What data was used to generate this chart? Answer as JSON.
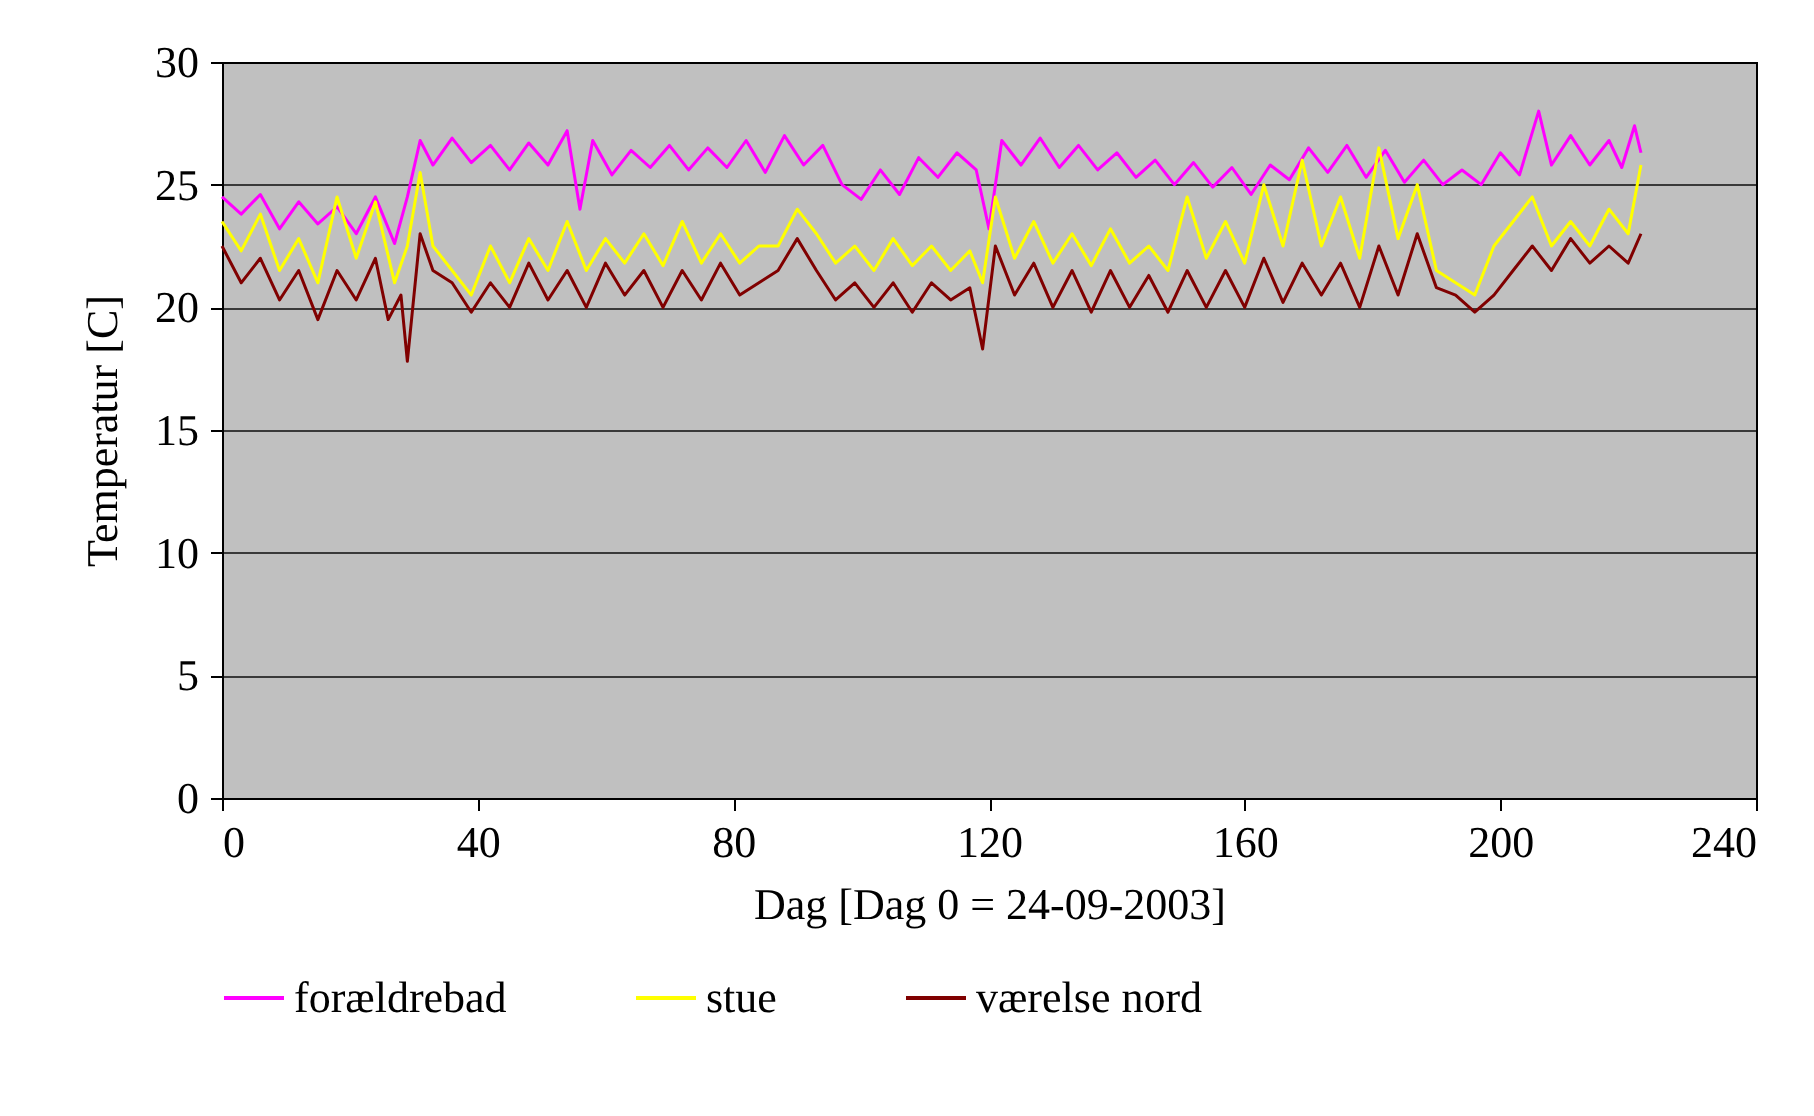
{
  "chart_data": {
    "type": "line",
    "xlabel": "Dag [Dag 0 = 24-09-2003]",
    "ylabel": "Temperatur [C]",
    "xlim": [
      0,
      240
    ],
    "xticks": [
      0,
      40,
      80,
      120,
      160,
      200,
      240
    ],
    "ylim": [
      0,
      30
    ],
    "yticks": [
      0,
      5,
      10,
      15,
      20,
      25,
      30
    ],
    "grid": "y",
    "legend": "bottom",
    "marker": "none",
    "line_style": "solid",
    "series": [
      {
        "name": "forældrebad",
        "color": "#ff00ff",
        "x": [
          0,
          3,
          6,
          9,
          12,
          15,
          18,
          21,
          24,
          27,
          29,
          31,
          33,
          36,
          39,
          42,
          45,
          48,
          51,
          54,
          56,
          58,
          61,
          64,
          67,
          70,
          73,
          76,
          79,
          82,
          85,
          88,
          91,
          94,
          97,
          100,
          103,
          106,
          109,
          112,
          115,
          118,
          120,
          122,
          125,
          128,
          131,
          134,
          137,
          140,
          143,
          146,
          149,
          152,
          155,
          158,
          161,
          164,
          167,
          170,
          173,
          176,
          179,
          182,
          185,
          188,
          191,
          194,
          197,
          200,
          203,
          206,
          208,
          211,
          214,
          217,
          219,
          221,
          222
        ],
        "values": [
          24.5,
          23.8,
          24.6,
          23.2,
          24.3,
          23.4,
          24.1,
          23.0,
          24.5,
          22.6,
          24.5,
          26.8,
          25.8,
          26.9,
          25.9,
          26.6,
          25.6,
          26.7,
          25.8,
          27.2,
          24.0,
          26.8,
          25.4,
          26.4,
          25.7,
          26.6,
          25.6,
          26.5,
          25.7,
          26.8,
          25.5,
          27.0,
          25.8,
          26.6,
          25.0,
          24.4,
          25.6,
          24.6,
          26.1,
          25.3,
          26.3,
          25.6,
          23.2,
          26.8,
          25.8,
          26.9,
          25.7,
          26.6,
          25.6,
          26.3,
          25.3,
          26.0,
          25.0,
          25.9,
          24.9,
          25.7,
          24.6,
          25.8,
          25.2,
          26.5,
          25.5,
          26.6,
          25.3,
          26.4,
          25.1,
          26.0,
          25.0,
          25.6,
          25.0,
          26.3,
          25.4,
          28.0,
          25.8,
          27.0,
          25.8,
          26.8,
          25.7,
          27.4,
          26.3
        ]
      },
      {
        "name": "stue",
        "color": "#ffff00",
        "x": [
          0,
          3,
          6,
          9,
          12,
          15,
          18,
          21,
          24,
          27,
          29,
          31,
          33,
          36,
          39,
          42,
          45,
          48,
          51,
          54,
          57,
          60,
          63,
          66,
          69,
          72,
          75,
          78,
          81,
          84,
          87,
          90,
          93,
          96,
          99,
          102,
          105,
          108,
          111,
          114,
          117,
          119,
          121,
          124,
          127,
          130,
          133,
          136,
          139,
          142,
          145,
          148,
          151,
          154,
          157,
          160,
          163,
          166,
          169,
          172,
          175,
          178,
          181,
          184,
          187,
          190,
          193,
          196,
          199,
          202,
          205,
          208,
          211,
          214,
          217,
          220,
          222
        ],
        "values": [
          23.5,
          22.3,
          23.8,
          21.5,
          22.8,
          21.0,
          24.5,
          22.0,
          24.3,
          21.0,
          22.5,
          25.5,
          22.5,
          21.5,
          20.5,
          22.5,
          21.0,
          22.8,
          21.5,
          23.5,
          21.5,
          22.8,
          21.8,
          23.0,
          21.7,
          23.5,
          21.8,
          23.0,
          21.8,
          22.5,
          22.5,
          24.0,
          23.0,
          21.8,
          22.5,
          21.5,
          22.8,
          21.7,
          22.5,
          21.5,
          22.3,
          21.0,
          24.5,
          22.0,
          23.5,
          21.8,
          23.0,
          21.7,
          23.2,
          21.8,
          22.5,
          21.5,
          24.5,
          22.0,
          23.5,
          21.8,
          25.0,
          22.5,
          26.0,
          22.5,
          24.5,
          22.0,
          26.5,
          22.8,
          25.0,
          21.5,
          21.0,
          20.5,
          22.5,
          23.5,
          24.5,
          22.5,
          23.5,
          22.5,
          24.0,
          23.0,
          25.8
        ]
      },
      {
        "name": "værelse nord",
        "color": "#800000",
        "x": [
          0,
          3,
          6,
          9,
          12,
          15,
          18,
          21,
          24,
          26,
          28,
          29,
          31,
          33,
          36,
          39,
          42,
          45,
          48,
          51,
          54,
          57,
          60,
          63,
          66,
          69,
          72,
          75,
          78,
          81,
          84,
          87,
          90,
          93,
          96,
          99,
          102,
          105,
          108,
          111,
          114,
          117,
          119,
          121,
          124,
          127,
          130,
          133,
          136,
          139,
          142,
          145,
          148,
          151,
          154,
          157,
          160,
          163,
          166,
          169,
          172,
          175,
          178,
          181,
          184,
          187,
          190,
          193,
          196,
          199,
          202,
          205,
          208,
          211,
          214,
          217,
          220,
          222
        ],
        "values": [
          22.5,
          21.0,
          22.0,
          20.3,
          21.5,
          19.5,
          21.5,
          20.3,
          22.0,
          19.5,
          20.5,
          17.8,
          23.0,
          21.5,
          21.0,
          19.8,
          21.0,
          20.0,
          21.8,
          20.3,
          21.5,
          20.0,
          21.8,
          20.5,
          21.5,
          20.0,
          21.5,
          20.3,
          21.8,
          20.5,
          21.0,
          21.5,
          22.8,
          21.5,
          20.3,
          21.0,
          20.0,
          21.0,
          19.8,
          21.0,
          20.3,
          20.8,
          18.3,
          22.5,
          20.5,
          21.8,
          20.0,
          21.5,
          19.8,
          21.5,
          20.0,
          21.3,
          19.8,
          21.5,
          20.0,
          21.5,
          20.0,
          22.0,
          20.2,
          21.8,
          20.5,
          21.8,
          20.0,
          22.5,
          20.5,
          23.0,
          20.8,
          20.5,
          19.8,
          20.5,
          21.5,
          22.5,
          21.5,
          22.8,
          21.8,
          22.5,
          21.8,
          23.0
        ]
      }
    ]
  }
}
